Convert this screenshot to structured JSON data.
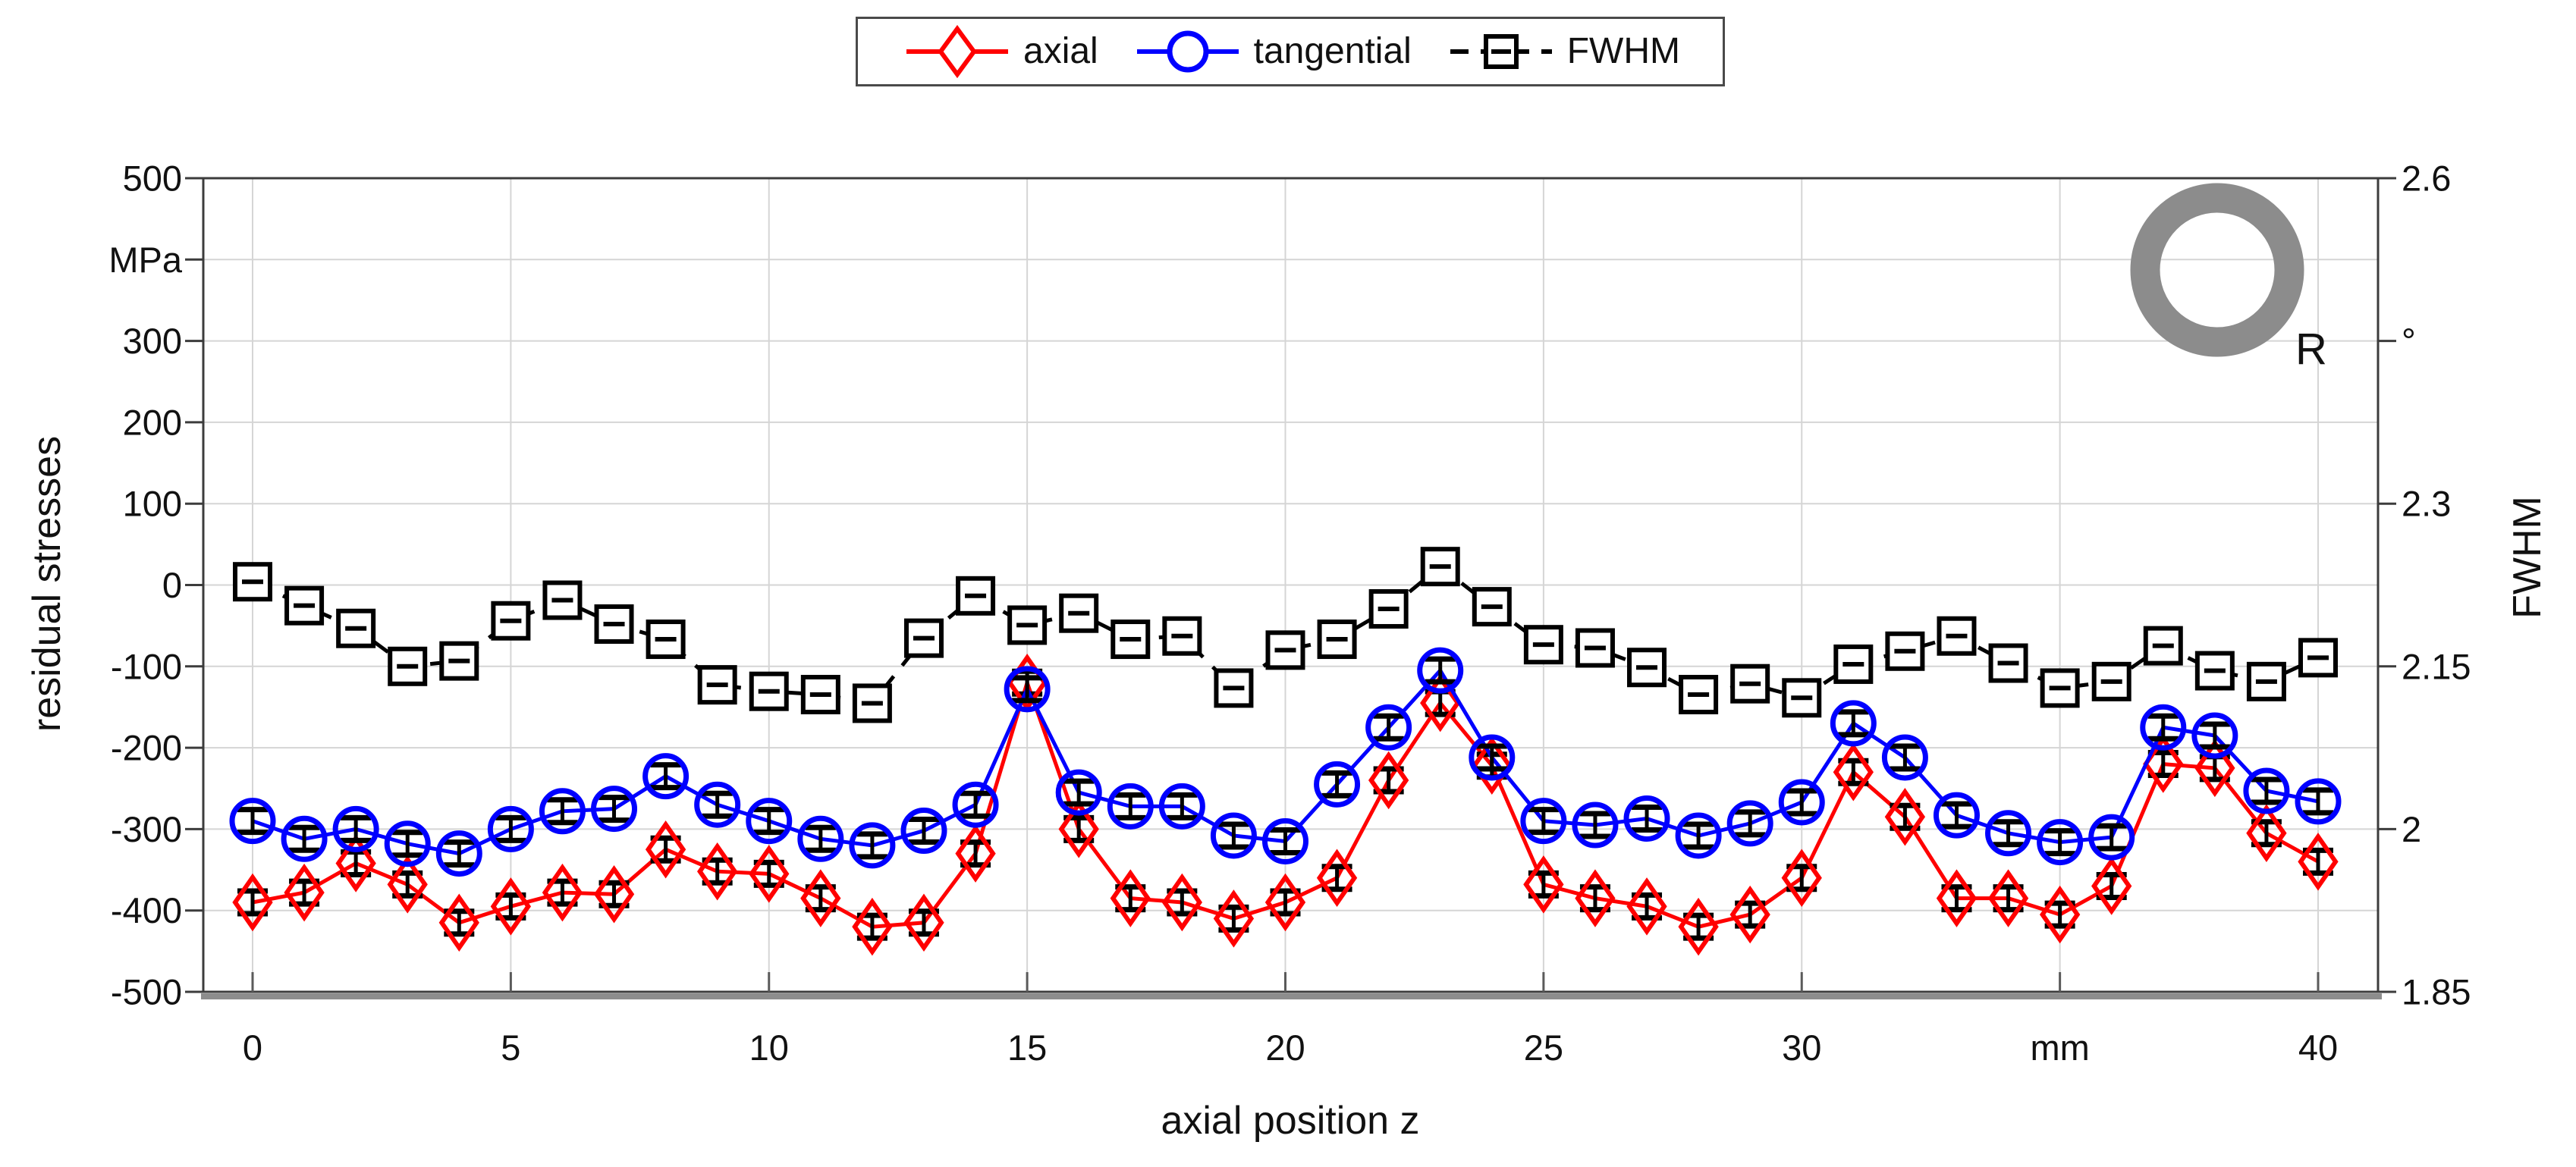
{
  "chart_data": {
    "type": "line",
    "title": "",
    "xlabel": "axial position z",
    "ylabel_left": "residual stresses",
    "ylabel_right": "FWHM",
    "left_unit_ticklabel": "MPa",
    "right_unit_ticklabel": "°",
    "x_unit_ticklabel": "mm",
    "xlim": [
      -1,
      41.2
    ],
    "ylim_left": [
      -500,
      500
    ],
    "ylim_right": [
      1.85,
      2.6
    ],
    "grid": true,
    "legend_position": "top-center",
    "x": [
      0,
      1,
      2,
      3,
      4,
      5,
      6,
      7,
      8,
      9,
      10,
      11,
      12,
      13,
      14,
      15,
      16,
      17,
      18,
      19,
      20,
      21,
      22,
      23,
      24,
      25,
      26,
      27,
      28,
      29,
      30,
      31,
      32,
      33,
      34,
      35,
      36,
      37,
      38,
      39,
      40
    ],
    "xticks": [
      {
        "value": 0,
        "label": "0"
      },
      {
        "value": 5,
        "label": "5"
      },
      {
        "value": 10,
        "label": "10"
      },
      {
        "value": 15,
        "label": "15"
      },
      {
        "value": 20,
        "label": "20"
      },
      {
        "value": 25,
        "label": "25"
      },
      {
        "value": 30,
        "label": "30"
      },
      {
        "value": 35,
        "label": "mm"
      },
      {
        "value": 40,
        "label": "40"
      }
    ],
    "yticks_left": [
      {
        "value": 500,
        "label": "500"
      },
      {
        "value": 400,
        "label": "MPa"
      },
      {
        "value": 300,
        "label": "300"
      },
      {
        "value": 200,
        "label": "200"
      },
      {
        "value": 100,
        "label": "100"
      },
      {
        "value": 0,
        "label": "0"
      },
      {
        "value": -100,
        "label": "-100"
      },
      {
        "value": -200,
        "label": "-200"
      },
      {
        "value": -300,
        "label": "-300"
      },
      {
        "value": -400,
        "label": "-400"
      },
      {
        "value": -500,
        "label": "-500"
      }
    ],
    "yticks_right": [
      {
        "value": 2.6,
        "label": "2.6"
      },
      {
        "value": 2.45,
        "label": "°"
      },
      {
        "value": 2.3,
        "label": "2.3"
      },
      {
        "value": 2.15,
        "label": "2.15"
      },
      {
        "value": 2.0,
        "label": "2"
      },
      {
        "value": 1.85,
        "label": "1.85"
      }
    ],
    "series": [
      {
        "name": "axial",
        "axis": "left",
        "color": "#ff0000",
        "marker": "diamond",
        "line": "solid",
        "y_error_mpa": 15,
        "values": [
          -390,
          -378,
          -342,
          -368,
          -415,
          -395,
          -378,
          -380,
          -325,
          -352,
          -355,
          -385,
          -420,
          -415,
          -330,
          -120,
          -300,
          -385,
          -390,
          -410,
          -390,
          -360,
          -240,
          -145,
          -222,
          -368,
          -385,
          -395,
          -420,
          -405,
          -360,
          -230,
          -285,
          -385,
          -385,
          -405,
          -370,
          -220,
          -225,
          -305,
          -340
        ]
      },
      {
        "name": "tangential",
        "axis": "left",
        "color": "#0000ff",
        "marker": "circle",
        "line": "solid",
        "y_error_mpa": 15,
        "values": [
          -290,
          -312,
          -300,
          -318,
          -330,
          -300,
          -278,
          -275,
          -235,
          -270,
          -290,
          -312,
          -320,
          -302,
          -270,
          -128,
          -255,
          -272,
          -272,
          -308,
          -315,
          -245,
          -175,
          -105,
          -212,
          -290,
          -295,
          -287,
          -308,
          -293,
          -267,
          -170,
          -212,
          -283,
          -305,
          -316,
          -310,
          -175,
          -185,
          -253,
          -266
        ]
      },
      {
        "name": "FWHM",
        "axis": "right",
        "color": "#000000",
        "marker": "square",
        "line": "dashed",
        "values": [
          2.228,
          2.206,
          2.185,
          2.15,
          2.155,
          2.192,
          2.211,
          2.189,
          2.175,
          2.133,
          2.127,
          2.124,
          2.116,
          2.176,
          2.215,
          2.188,
          2.199,
          2.175,
          2.178,
          2.13,
          2.165,
          2.175,
          2.203,
          2.242,
          2.205,
          2.17,
          2.167,
          2.149,
          2.124,
          2.134,
          2.121,
          2.152,
          2.164,
          2.178,
          2.153,
          2.13,
          2.136,
          2.169,
          2.146,
          2.136,
          2.158
        ]
      }
    ],
    "annotation": {
      "ring_label": "R"
    }
  }
}
